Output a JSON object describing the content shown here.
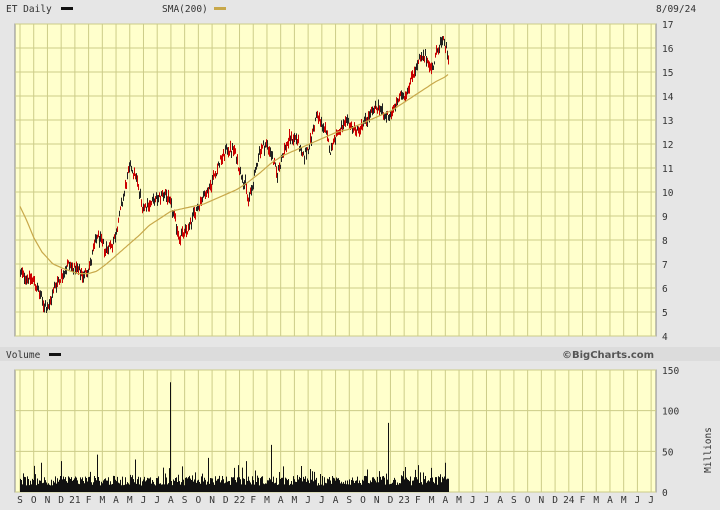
{
  "header": {
    "ticker_label": "ET Daily",
    "sma_label": "SMA(200)",
    "date": "8/09/24",
    "volume_label": "Volume",
    "brand": "©BigCharts.com",
    "volume_unit": "Millions"
  },
  "colors": {
    "background": "#e6e6e6",
    "plot_bg": "#ffffcc",
    "grid": "#cccc88",
    "price_up": "#222222",
    "price_down": "#cc0000",
    "sma": "#c8a84a",
    "volume": "#111111"
  },
  "chart_data": [
    {
      "type": "line",
      "name": "price",
      "ylim": [
        4,
        17
      ],
      "y_ticks": [
        4,
        5,
        6,
        7,
        8,
        9,
        10,
        11,
        12,
        13,
        14,
        15,
        16,
        17
      ],
      "x_months": [
        "S",
        "O",
        "N",
        "D",
        "21",
        "F",
        "M",
        "A",
        "M",
        "J",
        "J",
        "A",
        "S",
        "O",
        "N",
        "D",
        "22",
        "F",
        "M",
        "A",
        "M",
        "J",
        "J",
        "A",
        "S",
        "O",
        "N",
        "D",
        "23",
        "F",
        "M",
        "A",
        "M",
        "J",
        "J",
        "A",
        "S",
        "O",
        "N",
        "D",
        "24",
        "F",
        "M",
        "A",
        "M",
        "J",
        "J"
      ],
      "price_anchors": [
        [
          0,
          6.6
        ],
        [
          1,
          6.3
        ],
        [
          1.7,
          5.3
        ],
        [
          2.1,
          5.2
        ],
        [
          2.5,
          6.1
        ],
        [
          3,
          6.5
        ],
        [
          3.5,
          7.0
        ],
        [
          4,
          6.8
        ],
        [
          4.6,
          6.5
        ],
        [
          5.1,
          7.0
        ],
        [
          5.6,
          8.2
        ],
        [
          6.2,
          7.6
        ],
        [
          6.8,
          7.9
        ],
        [
          7.4,
          9.5
        ],
        [
          8.0,
          11.1
        ],
        [
          8.4,
          10.7
        ],
        [
          8.9,
          9.4
        ],
        [
          9.4,
          9.5
        ],
        [
          10.0,
          9.7
        ],
        [
          10.5,
          10.0
        ],
        [
          11.0,
          9.4
        ],
        [
          11.6,
          8.1
        ],
        [
          12.2,
          8.4
        ],
        [
          12.6,
          9.0
        ],
        [
          13.2,
          9.7
        ],
        [
          13.8,
          10.2
        ],
        [
          14.5,
          11.2
        ],
        [
          15.1,
          11.8
        ],
        [
          15.6,
          11.7
        ],
        [
          16.0,
          10.9
        ],
        [
          16.4,
          10.3
        ],
        [
          16.6,
          9.6
        ],
        [
          17.0,
          10.4
        ],
        [
          17.4,
          11.7
        ],
        [
          17.9,
          12.0
        ],
        [
          18.3,
          11.6
        ],
        [
          18.7,
          10.7
        ],
        [
          19.2,
          11.7
        ],
        [
          19.6,
          12.2
        ],
        [
          20.1,
          12.3
        ],
        [
          20.6,
          11.4
        ],
        [
          21.1,
          12.0
        ],
        [
          21.6,
          13.2
        ],
        [
          22.2,
          12.6
        ],
        [
          22.6,
          11.7
        ],
        [
          22.9,
          12.3
        ],
        [
          23.4,
          12.6
        ],
        [
          23.9,
          12.9
        ],
        [
          24.5,
          12.5
        ],
        [
          25.1,
          12.9
        ],
        [
          25.6,
          13.3
        ],
        [
          26.2,
          13.6
        ],
        [
          26.5,
          13.1
        ],
        [
          27.1,
          13.3
        ],
        [
          27.6,
          13.9
        ],
        [
          28.1,
          14.1
        ],
        [
          28.6,
          14.9
        ],
        [
          29.1,
          15.5
        ],
        [
          29.6,
          15.6
        ],
        [
          30.0,
          15.1
        ],
        [
          30.5,
          16.1
        ],
        [
          30.9,
          16.3
        ],
        [
          31.2,
          15.5
        ]
      ],
      "sma_anchors": [
        [
          0,
          9.4
        ],
        [
          0.5,
          8.8
        ],
        [
          1.0,
          8.1
        ],
        [
          1.6,
          7.5
        ],
        [
          2.4,
          7.0
        ],
        [
          3.2,
          6.8
        ],
        [
          4.2,
          6.6
        ],
        [
          5.0,
          6.6
        ],
        [
          5.6,
          6.7
        ],
        [
          6.3,
          7.0
        ],
        [
          7.1,
          7.4
        ],
        [
          7.9,
          7.8
        ],
        [
          8.7,
          8.2
        ],
        [
          9.4,
          8.6
        ],
        [
          10.2,
          8.9
        ],
        [
          11.0,
          9.2
        ],
        [
          11.8,
          9.3
        ],
        [
          12.6,
          9.4
        ],
        [
          13.4,
          9.5
        ],
        [
          14.2,
          9.7
        ],
        [
          15.0,
          9.9
        ],
        [
          15.8,
          10.1
        ],
        [
          16.6,
          10.4
        ],
        [
          17.5,
          10.8
        ],
        [
          18.3,
          11.2
        ],
        [
          19.1,
          11.5
        ],
        [
          19.9,
          11.7
        ],
        [
          20.7,
          11.9
        ],
        [
          21.5,
          12.1
        ],
        [
          22.3,
          12.3
        ],
        [
          23.1,
          12.5
        ],
        [
          23.9,
          12.6
        ],
        [
          24.7,
          12.8
        ],
        [
          25.5,
          13.0
        ],
        [
          26.3,
          13.2
        ],
        [
          27.1,
          13.4
        ],
        [
          27.9,
          13.7
        ],
        [
          28.7,
          14.0
        ],
        [
          29.5,
          14.3
        ],
        [
          30.3,
          14.6
        ],
        [
          31.0,
          14.8
        ],
        [
          31.2,
          14.9
        ]
      ]
    },
    {
      "type": "bar",
      "name": "volume",
      "ylabel": "Millions",
      "ylim": [
        0,
        150
      ],
      "y_ticks": [
        0,
        50,
        100,
        150
      ],
      "spikes": [
        [
          1.5,
          36
        ],
        [
          3.0,
          38
        ],
        [
          5.6,
          46
        ],
        [
          8.4,
          40
        ],
        [
          10.4,
          30
        ],
        [
          10.9,
          135
        ],
        [
          13.7,
          42
        ],
        [
          15.9,
          33
        ],
        [
          16.5,
          38
        ],
        [
          18.3,
          58
        ],
        [
          20.5,
          32
        ],
        [
          26.8,
          85
        ],
        [
          29.0,
          33
        ],
        [
          31.0,
          36
        ]
      ]
    }
  ]
}
